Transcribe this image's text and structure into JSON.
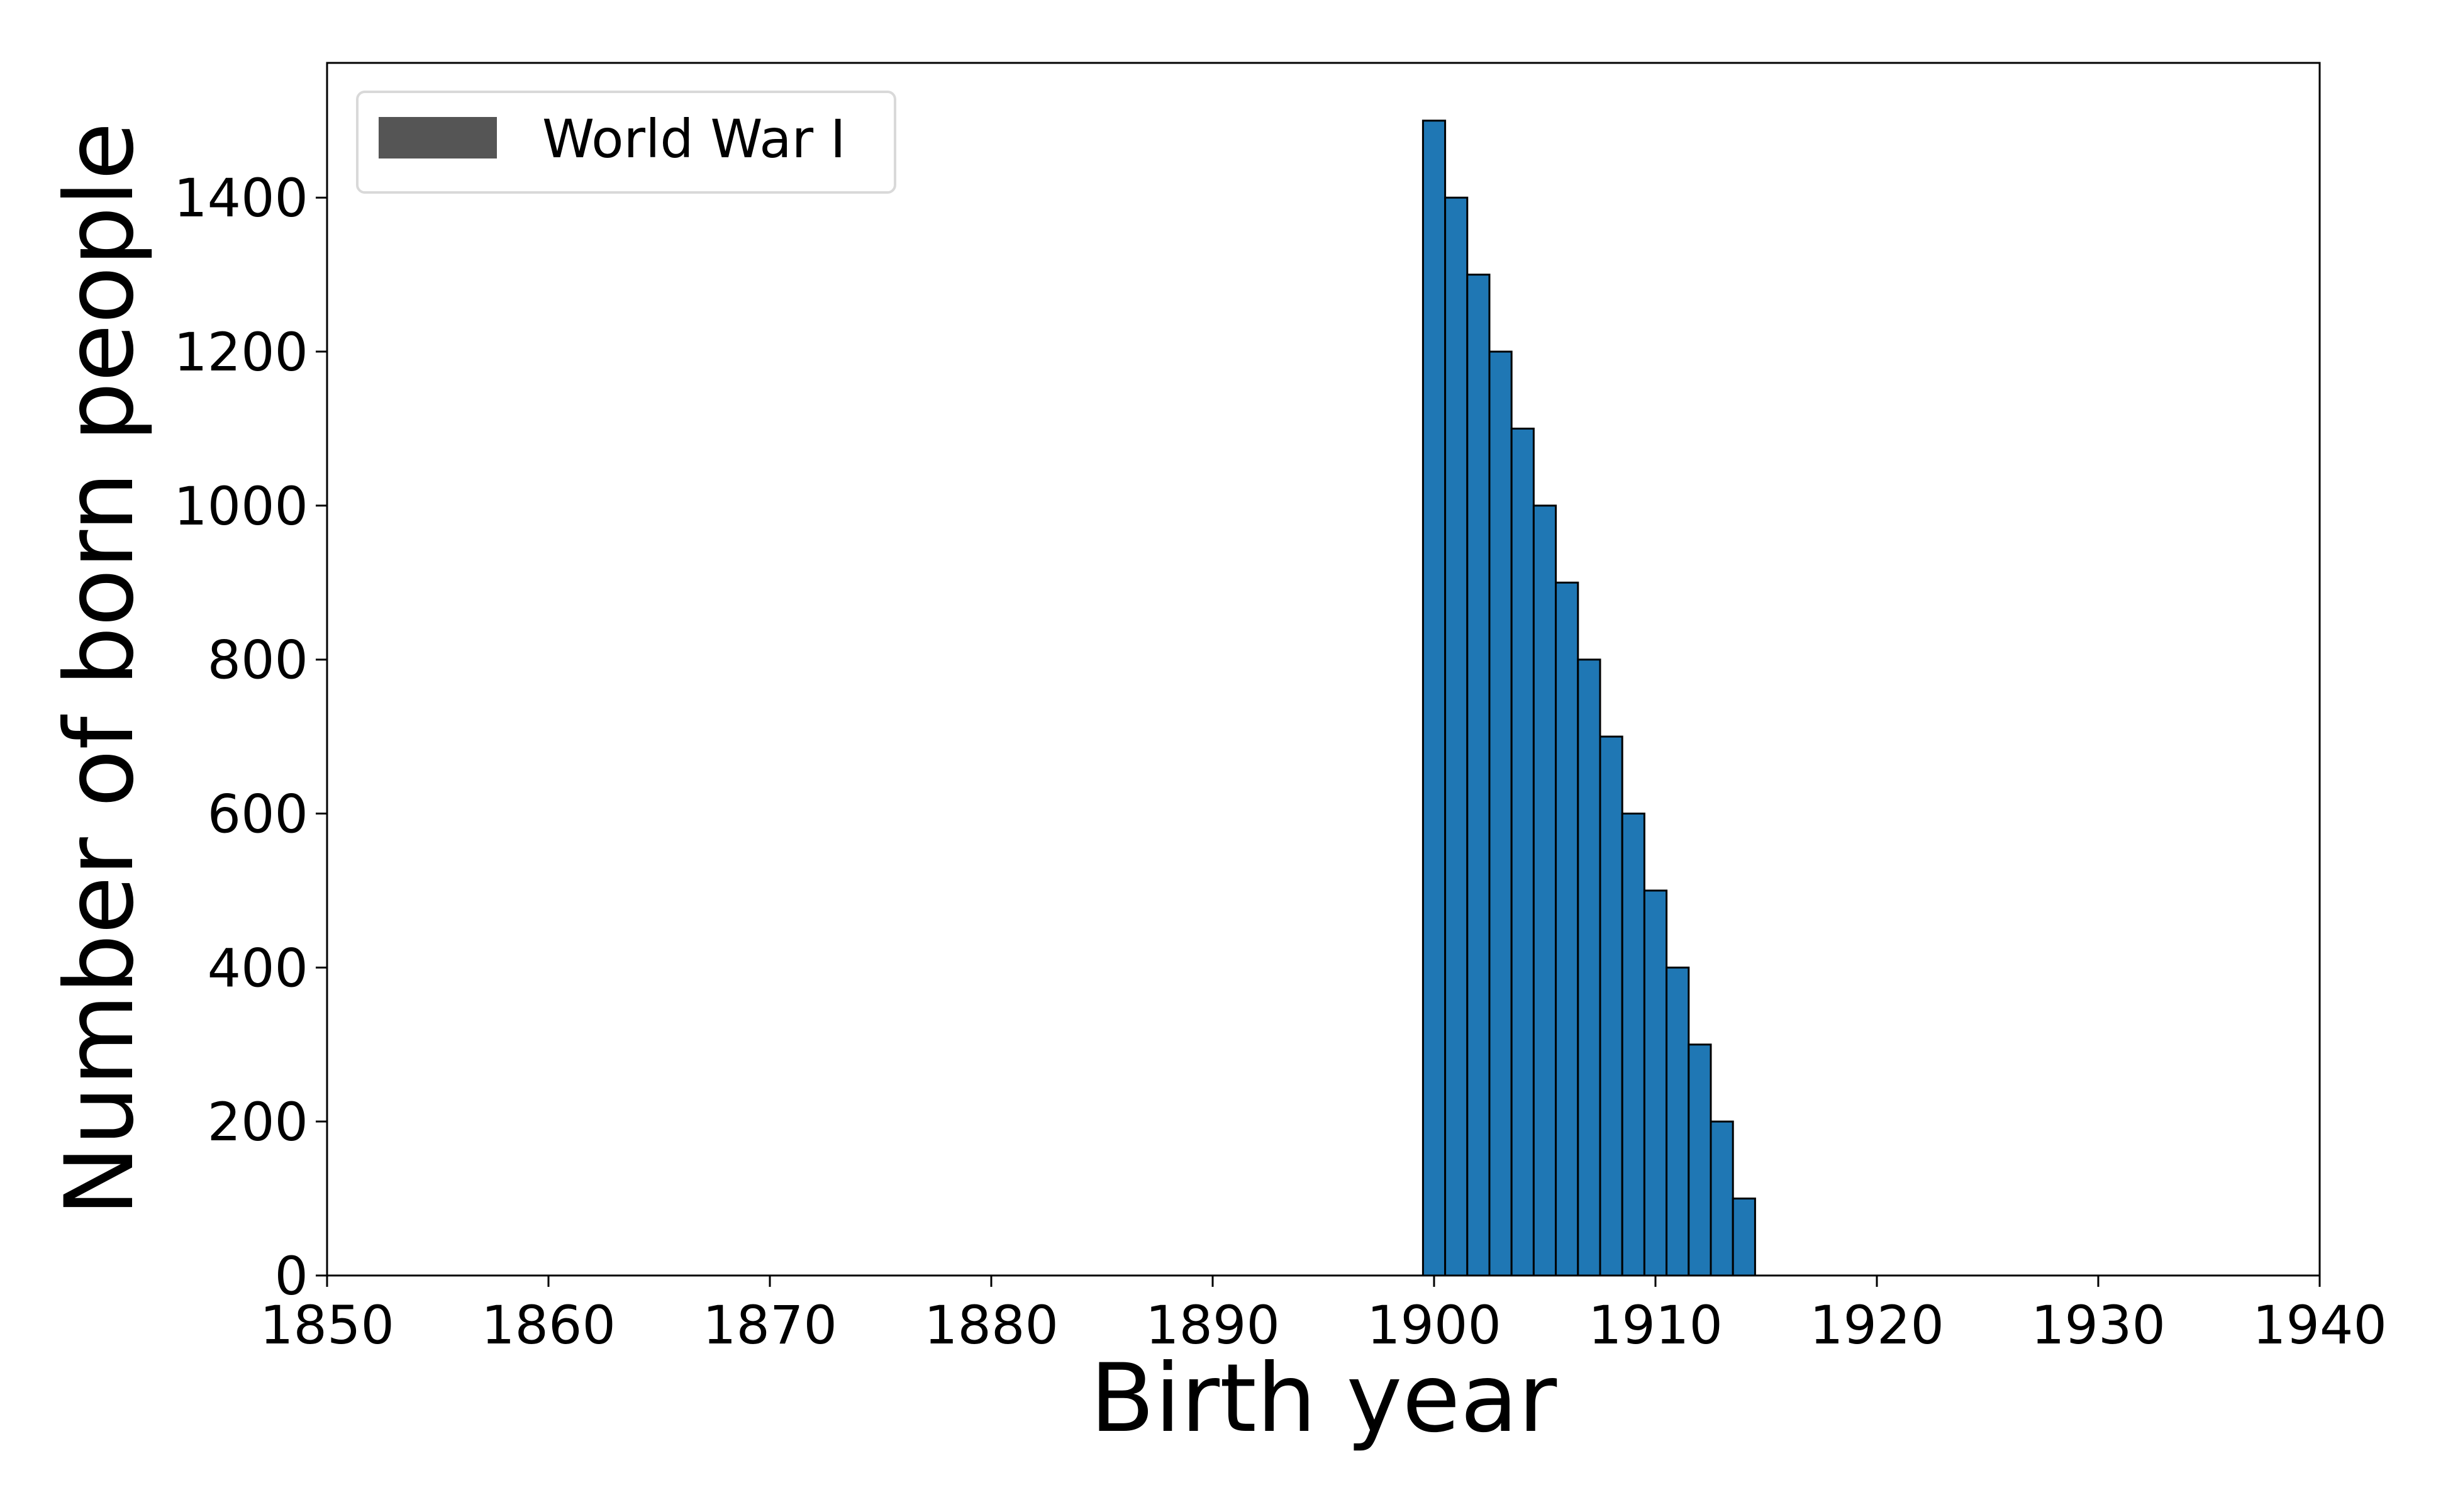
{
  "chart_data": {
    "type": "bar",
    "title": "",
    "xlabel": "Birth year",
    "ylabel": "Number of born people",
    "xlim": [
      1850,
      1940
    ],
    "ylim": [
      0,
      1575
    ],
    "x_ticks": [
      "1850",
      "1860",
      "1870",
      "1880",
      "1890",
      "1900",
      "1910",
      "1920",
      "1930",
      "1940"
    ],
    "y_ticks": [
      "0",
      "200",
      "400",
      "600",
      "800",
      "1000",
      "1200",
      "1400"
    ],
    "categories": [
      "1900",
      "1901",
      "1902",
      "1903",
      "1904",
      "1905",
      "1906",
      "1907",
      "1908",
      "1909",
      "1910",
      "1911",
      "1912",
      "1913",
      "1914"
    ],
    "series": [
      {
        "name": "",
        "values": [
          1500,
          1400,
          1300,
          1200,
          1100,
          1000,
          900,
          800,
          700,
          600,
          500,
          400,
          300,
          200,
          100
        ],
        "color": "#1f77b4"
      }
    ],
    "legend": {
      "placement": "top-left",
      "entries": [
        {
          "label": "World War I",
          "color": "#555555"
        }
      ]
    },
    "grid": false,
    "bar_edge_color": "#000000"
  }
}
